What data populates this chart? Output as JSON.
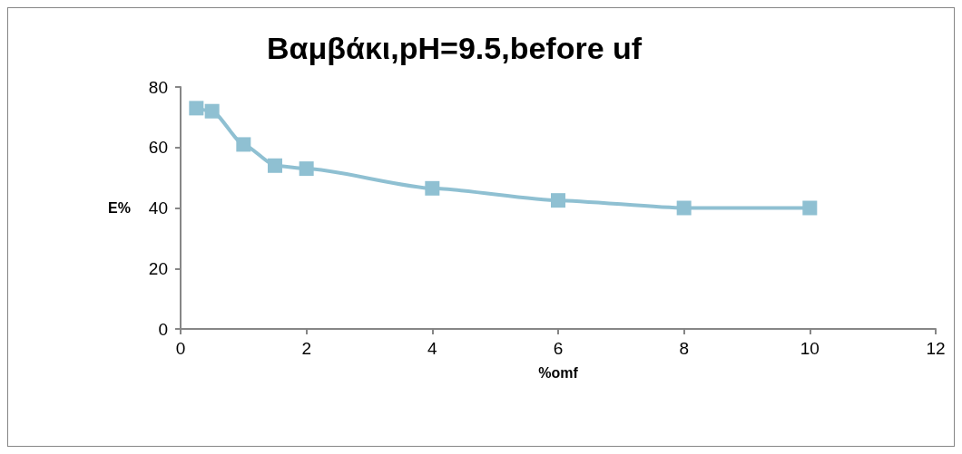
{
  "chart_data": {
    "type": "line",
    "title": "Βαμβάκι,pH=9.5,before uf",
    "xlabel": "%omf",
    "ylabel": "E%",
    "x": [
      0.25,
      0.5,
      1,
      1.5,
      2,
      4,
      6,
      8,
      10
    ],
    "series": [
      {
        "color": "#8fc0d2",
        "values": [
          73,
          72,
          61,
          54,
          53,
          46.5,
          42.5,
          40,
          40
        ]
      }
    ],
    "xlim": [
      0,
      12
    ],
    "xticks": [
      0,
      2,
      4,
      6,
      8,
      10,
      12
    ],
    "ylim": [
      0,
      80
    ],
    "yticks": [
      0,
      20,
      40,
      60,
      80
    ],
    "grid": false,
    "marker": "square",
    "line_style": "solid"
  }
}
